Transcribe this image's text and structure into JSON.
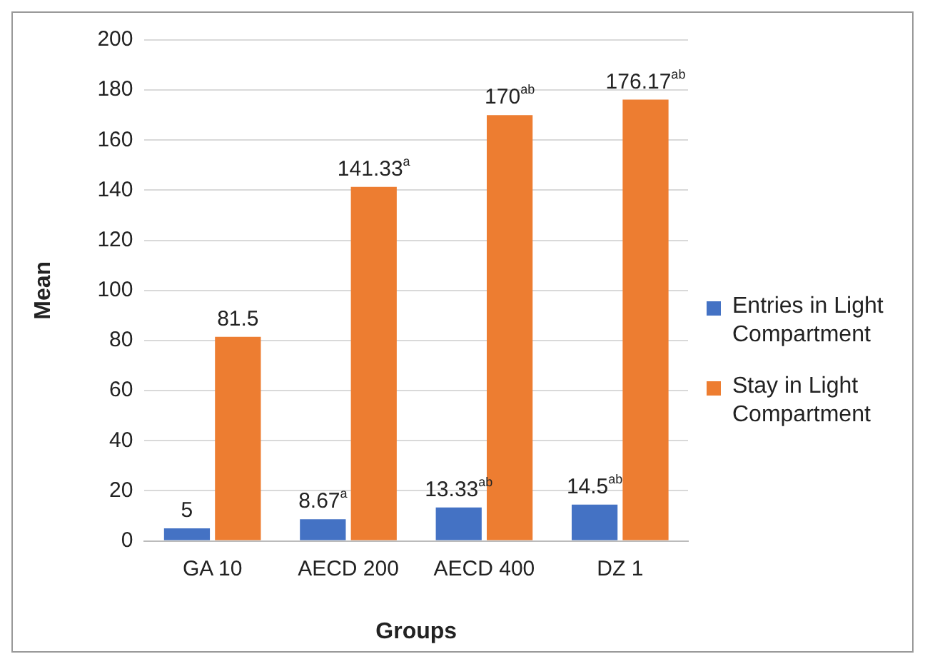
{
  "chart_data": {
    "type": "bar",
    "xlabel": "Groups",
    "ylabel": "Mean",
    "categories": [
      "GA 10",
      "AECD 200",
      "AECD 400",
      "DZ 1"
    ],
    "series": [
      {
        "name": "Entries in Light Compartment",
        "color": "#4472c4",
        "values": [
          5,
          8.67,
          13.33,
          14.5
        ],
        "value_labels": [
          "5",
          "8.67$^{a}$",
          "13.33$^{ab}$",
          "14.5$^{ab}$"
        ]
      },
      {
        "name": "Stay in Light Compartment",
        "color": "#ed7d31",
        "values": [
          81.5,
          141.33,
          170,
          176.17
        ],
        "value_labels": [
          "81.5",
          "141.33$^{a}$",
          "170$^{ab}$",
          "176.17$^{ab}$"
        ]
      }
    ],
    "ylim": [
      0,
      200
    ],
    "yticks": [
      0,
      20,
      40,
      60,
      80,
      100,
      120,
      140,
      160,
      180,
      200
    ],
    "grid": "y",
    "legend": "right"
  }
}
